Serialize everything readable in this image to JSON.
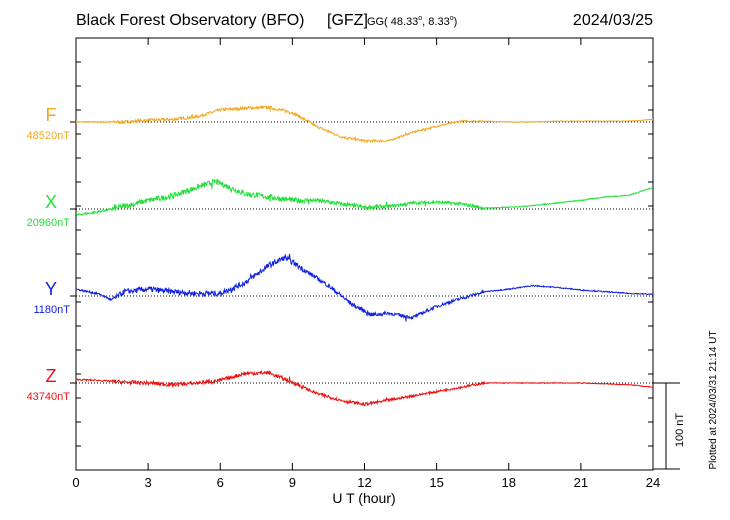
{
  "header": {
    "title": "Black Forest Observatory (BFO)",
    "org": "[GFZ]",
    "coord_system": "GG",
    "lat": "48.33",
    "lon": "8.33",
    "date": "2024/03/25"
  },
  "plotted_at": "Plotted at 2024/03/31 21:14 UT",
  "chart_data": {
    "type": "line",
    "title": "Black Forest Observatory (BFO)",
    "xlabel": "U T (hour)",
    "xlim": [
      0,
      24
    ],
    "xticks": [
      0,
      3,
      6,
      9,
      12,
      15,
      18,
      21,
      24
    ],
    "scale_bar": {
      "label": "100 nT",
      "value_nT": 100
    },
    "series": [
      {
        "name": "F",
        "baseline": "48520nT",
        "baseline_nT": 48520,
        "color": "#f2a81f",
        "hours": [
          0,
          1,
          2,
          3,
          4,
          5,
          6,
          7,
          8,
          9,
          10,
          11,
          12,
          13,
          14,
          15,
          16,
          17,
          18,
          19,
          20,
          21,
          22,
          23,
          24
        ],
        "values": [
          0,
          0,
          0,
          2,
          3,
          6,
          14,
          16,
          17,
          11,
          -5,
          -17,
          -22,
          -22,
          -12,
          -5,
          1,
          1,
          0,
          0,
          1,
          1,
          1,
          1,
          3
        ]
      },
      {
        "name": "X",
        "baseline": "20960nT",
        "baseline_nT": 20960,
        "color": "#22e03a",
        "hours": [
          0,
          1,
          2,
          3,
          4,
          5,
          5.8,
          7,
          8,
          9,
          10,
          11,
          12,
          13,
          14,
          15,
          16,
          17,
          18,
          19,
          20,
          21,
          22,
          23,
          24
        ],
        "values": [
          -7,
          -3,
          3,
          10,
          15,
          25,
          32,
          18,
          14,
          10,
          10,
          6,
          2,
          3,
          7,
          8,
          6,
          1,
          2,
          4,
          7,
          10,
          14,
          16,
          25
        ]
      },
      {
        "name": "Y",
        "baseline": "1180nT",
        "baseline_nT": 1180,
        "color": "#1020e0",
        "hours": [
          0,
          1,
          1.5,
          2,
          3,
          4,
          5,
          6,
          7,
          8,
          8.7,
          9.5,
          10.5,
          11.5,
          12.3,
          13,
          14,
          15,
          16,
          17,
          18,
          19,
          20,
          21,
          22,
          23,
          24
        ],
        "values": [
          8,
          2,
          -5,
          5,
          8,
          5,
          3,
          3,
          15,
          35,
          45,
          30,
          12,
          -10,
          -22,
          -20,
          -25,
          -12,
          -3,
          5,
          8,
          12,
          10,
          7,
          5,
          3,
          2
        ]
      },
      {
        "name": "Z",
        "baseline": "43740nT",
        "baseline_nT": 43740,
        "color": "#ee1010",
        "hours": [
          0,
          1,
          2,
          3,
          4,
          5,
          6,
          7,
          8,
          9,
          10,
          11,
          12,
          13,
          14,
          15,
          16,
          17,
          18,
          19,
          20,
          21,
          22,
          23,
          24
        ],
        "values": [
          4,
          3,
          1,
          0,
          -2,
          0,
          3,
          11,
          12,
          1,
          -12,
          -20,
          -25,
          -20,
          -15,
          -10,
          -5,
          0,
          0,
          0,
          0,
          0,
          -1,
          -2,
          -5
        ]
      }
    ]
  }
}
